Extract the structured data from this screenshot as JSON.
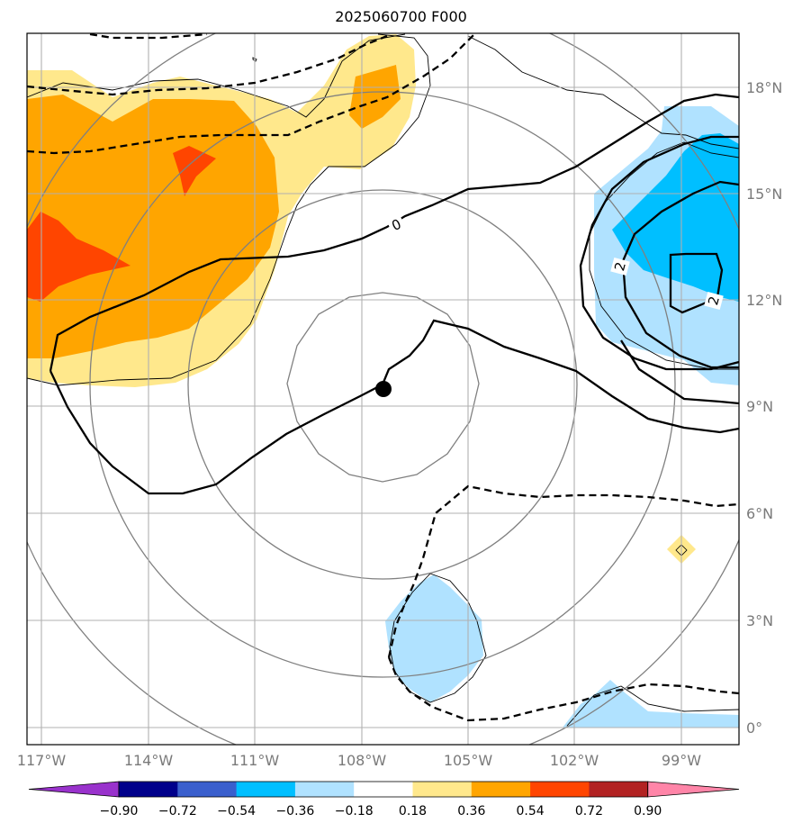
{
  "title": "2025060700 F000",
  "map": {
    "lat_ticks": [
      "18°N",
      "15°N",
      "12°N",
      "9°N",
      "6°N",
      "3°N",
      "0°"
    ],
    "lon_ticks": [
      "117°W",
      "114°W",
      "111°W",
      "108°W",
      "105°W",
      "102°W",
      "99°W"
    ],
    "center_marker": "storm-center",
    "contour_labels": [
      "0",
      "2",
      "2"
    ]
  },
  "colorbar": {
    "labels": [
      "−0.90",
      "−0.72",
      "−0.54",
      "−0.36",
      "−0.18",
      "0.18",
      "0.36",
      "0.54",
      "0.72",
      "0.90"
    ],
    "colors": [
      "#9932CC",
      "#00008B",
      "#3A5FCD",
      "#00BFFF",
      "#B0E2FF",
      "#FFFFFF",
      "#FFE88C",
      "#FFA500",
      "#FF4500",
      "#B22222",
      "#FF85A8"
    ]
  }
}
